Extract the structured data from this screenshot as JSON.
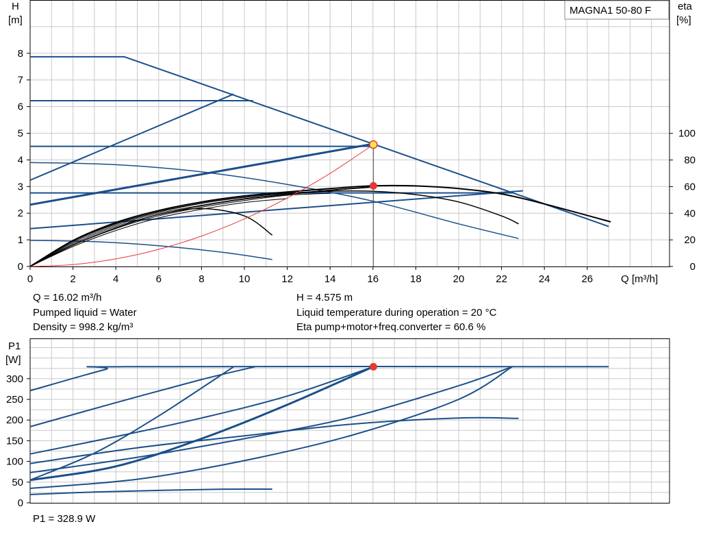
{
  "model_label": "MAGNA1 50-80 F",
  "head_chart": {
    "y_label_line1": "H",
    "y_label_line2": "[m]",
    "y2_label_line1": "eta",
    "y2_label_line2": "[%]",
    "x_label": "Q [m³/h]",
    "x_ticks": [
      "0",
      "2",
      "4",
      "6",
      "8",
      "10",
      "12",
      "14",
      "16",
      "18",
      "20",
      "22",
      "24",
      "26"
    ],
    "y_ticks": [
      "0",
      "1",
      "2",
      "3",
      "4",
      "5",
      "6",
      "7",
      "8"
    ],
    "y2_ticks": [
      "0",
      "20",
      "40",
      "60",
      "80",
      "100"
    ]
  },
  "info": {
    "q": "Q = 16.02 m³/h",
    "liquid": "Pumped liquid = Water",
    "density": "Density = 998.2 kg/m³",
    "h": "H = 4.575 m",
    "temp": "Liquid temperature during operation = 20 °C",
    "eta": "Eta pump+motor+freq.converter = 60.6 %"
  },
  "power_chart": {
    "y_label_line1": "P1",
    "y_label_line2": "[W]",
    "y_ticks": [
      "0",
      "50",
      "100",
      "150",
      "200",
      "250",
      "300"
    ]
  },
  "p1_text": "P1 = 328.9 W",
  "colors": {
    "curve_blue": "#1a4f8a",
    "efficiency_black": "#000000",
    "system_red": "#e53935",
    "duty_fill_yellow": "#ffe94a",
    "grid": "#c8c8c8"
  },
  "chart_data": [
    {
      "type": "line",
      "name": "head",
      "x_unit": "m³/h",
      "y_unit": "m",
      "xlim": [
        0,
        28
      ],
      "ylim": [
        0,
        9
      ],
      "y2lim": [
        0,
        100
      ],
      "grid": true,
      "series": [
        {
          "kind": "head",
          "width": 2,
          "x": [
            0,
            4.4,
            16.0,
            27.0
          ],
          "y": [
            7.87,
            7.87,
            4.6,
            1.5
          ]
        },
        {
          "kind": "head",
          "width": 2,
          "x": [
            0,
            10.4
          ],
          "y": [
            6.22,
            6.22
          ]
        },
        {
          "kind": "head",
          "width": 2,
          "x": [
            0,
            16.0
          ],
          "y": [
            4.51,
            4.51
          ]
        },
        {
          "kind": "head",
          "width": 2,
          "x": [
            0,
            22.5
          ],
          "y": [
            2.76,
            2.76
          ]
        },
        {
          "kind": "head",
          "width": 2,
          "x": [
            0,
            9.5
          ],
          "y": [
            3.24,
            6.47
          ]
        },
        {
          "kind": "head",
          "width": 3,
          "x": [
            0,
            16.0
          ],
          "y": [
            2.32,
            4.6
          ]
        },
        {
          "kind": "head",
          "width": 2,
          "x": [
            0,
            23.0
          ],
          "y": [
            1.42,
            2.84
          ]
        },
        {
          "kind": "head",
          "width": 1.5,
          "x": [
            0,
            4,
            8,
            12,
            16,
            20,
            22.8
          ],
          "y": [
            3.9,
            3.82,
            3.55,
            3.08,
            2.45,
            1.6,
            1.05
          ]
        },
        {
          "kind": "head",
          "width": 1.5,
          "x": [
            0,
            3,
            6,
            9,
            11.3
          ],
          "y": [
            0.98,
            0.93,
            0.78,
            0.53,
            0.26
          ]
        }
      ]
    },
    {
      "type": "line",
      "name": "eta",
      "y_unit": "%",
      "series": [
        {
          "kind": "eta",
          "width": 2,
          "x": [
            0,
            2,
            4,
            6,
            8,
            10,
            12,
            14,
            16,
            18,
            20,
            22,
            24,
            27.1
          ],
          "y": [
            0,
            19.5,
            33,
            42,
            48.5,
            53,
            56,
            58.5,
            60.6,
            60.5,
            58.5,
            54.5,
            47,
            33.5
          ]
        },
        {
          "kind": "eta",
          "width": 1.5,
          "x": [
            0,
            2,
            4,
            6,
            8,
            10,
            12,
            14,
            16,
            18,
            20,
            22,
            22.8
          ],
          "y": [
            0,
            19,
            32,
            41,
            47.5,
            52,
            55,
            56.5,
            56.5,
            54,
            48.5,
            38,
            32
          ]
        },
        {
          "kind": "eta",
          "width": 1.5,
          "x": [
            0,
            2,
            4,
            6,
            8,
            10,
            11.3
          ],
          "y": [
            0,
            16,
            29,
            39,
            43.5,
            38,
            23.5
          ]
        },
        {
          "kind": "eta",
          "width": 1,
          "x": [
            0,
            2,
            4,
            6,
            8,
            10,
            12,
            14,
            16
          ],
          "y": [
            0,
            18,
            31,
            40,
            46,
            51,
            54.5,
            57.5,
            60
          ]
        },
        {
          "kind": "eta",
          "width": 1,
          "x": [
            0,
            2,
            4,
            6,
            8,
            10,
            12,
            14,
            16
          ],
          "y": [
            0,
            17,
            30,
            39,
            45.5,
            50.5,
            54,
            57,
            59.5
          ]
        },
        {
          "kind": "eta",
          "width": 1,
          "x": [
            0,
            2,
            4,
            6,
            8,
            10,
            12,
            14
          ],
          "y": [
            0,
            16,
            28.5,
            38,
            44.5,
            49.5,
            53.5,
            55
          ]
        },
        {
          "kind": "eta",
          "width": 1,
          "x": [
            0,
            2,
            4,
            6,
            8,
            10,
            12
          ],
          "y": [
            0,
            15,
            27,
            36.5,
            43,
            48,
            51
          ]
        }
      ]
    },
    {
      "type": "line",
      "name": "system_curve",
      "series": [
        {
          "kind": "system",
          "width": 1,
          "x": [
            0,
            2,
            4,
            6,
            8,
            10,
            12,
            14,
            16.02
          ],
          "y": [
            0,
            0.071,
            0.285,
            0.642,
            1.141,
            1.783,
            2.567,
            3.494,
            4.575
          ]
        }
      ]
    },
    {
      "type": "line",
      "name": "power",
      "x_unit": "m³/h",
      "y_unit": "W",
      "xlim": [
        0,
        28
      ],
      "ylim": [
        0,
        350
      ],
      "grid": true,
      "series": [
        {
          "kind": "power",
          "width": 2,
          "x": [
            0,
            3.5,
            4.5,
            27.0
          ],
          "y": [
            271,
            322,
            328.9,
            328.9
          ]
        },
        {
          "kind": "power",
          "width": 2,
          "x": [
            0,
            4,
            8,
            10.5
          ],
          "y": [
            184,
            242,
            298,
            328.9
          ]
        },
        {
          "kind": "power",
          "width": 2,
          "x": [
            0,
            3,
            6,
            9.5
          ],
          "y": [
            55,
            120,
            210,
            328.9
          ]
        },
        {
          "kind": "power",
          "width": 3,
          "x": [
            0,
            4,
            8,
            12,
            16.02
          ],
          "y": [
            55,
            88,
            155,
            237,
            328.9
          ]
        },
        {
          "kind": "power",
          "width": 2,
          "x": [
            0,
            4,
            8,
            12,
            16.02
          ],
          "y": [
            118,
            160,
            205,
            258,
            328.9
          ]
        },
        {
          "kind": "power",
          "width": 2,
          "x": [
            0,
            5,
            10,
            15,
            20,
            22.8
          ],
          "y": [
            95,
            133,
            162,
            190,
            205,
            204
          ]
        },
        {
          "kind": "power",
          "width": 2,
          "x": [
            0,
            5,
            10,
            15,
            20,
            22.5
          ],
          "y": [
            73,
            110,
            155,
            207,
            283,
            328.9
          ]
        },
        {
          "kind": "power",
          "width": 2,
          "x": [
            0,
            5,
            10,
            15,
            20,
            22.5
          ],
          "y": [
            35,
            57,
            102,
            163,
            250,
            328.9
          ]
        },
        {
          "kind": "power",
          "width": 2,
          "x": [
            0,
            3,
            6,
            9,
            11.3
          ],
          "y": [
            20,
            26,
            30,
            33,
            33
          ]
        }
      ]
    }
  ],
  "duty_point": {
    "q": 16.02,
    "h": 4.575,
    "eta": 60.6,
    "p1": 328.9
  }
}
